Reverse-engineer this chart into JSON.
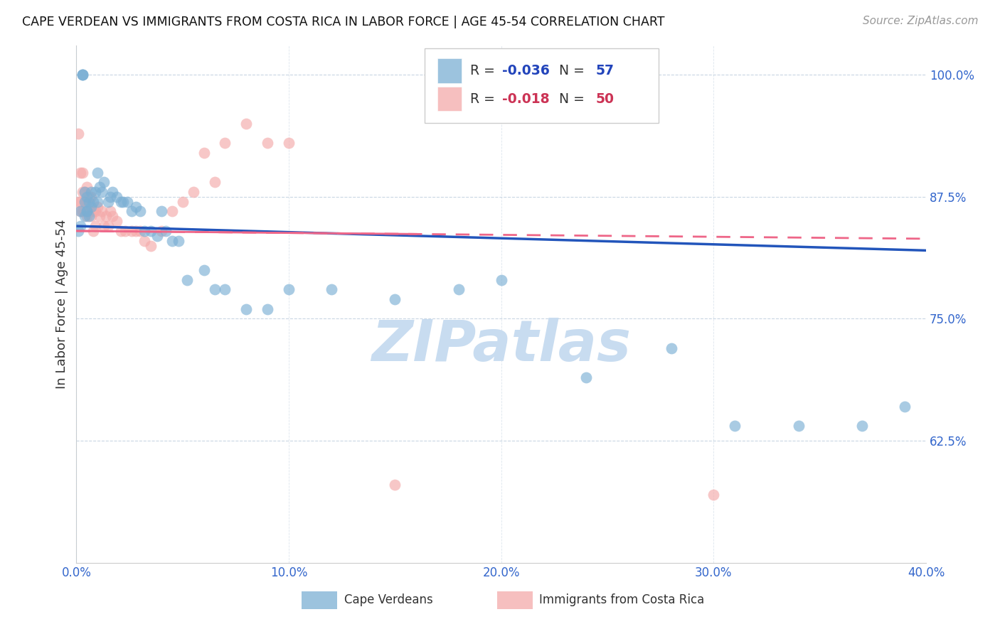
{
  "title": "CAPE VERDEAN VS IMMIGRANTS FROM COSTA RICA IN LABOR FORCE | AGE 45-54 CORRELATION CHART",
  "source": "Source: ZipAtlas.com",
  "ylabel": "In Labor Force | Age 45-54",
  "xlim": [
    0.0,
    0.4
  ],
  "ylim": [
    0.5,
    1.03
  ],
  "xtick_labels": [
    "0.0%",
    "10.0%",
    "20.0%",
    "30.0%",
    "40.0%"
  ],
  "xtick_vals": [
    0.0,
    0.1,
    0.2,
    0.3,
    0.4
  ],
  "ytick_labels": [
    "62.5%",
    "75.0%",
    "87.5%",
    "100.0%"
  ],
  "ytick_vals": [
    0.625,
    0.75,
    0.875,
    1.0
  ],
  "blue_color": "#7BAFD4",
  "pink_color": "#F4AAAA",
  "blue_line_color": "#2255BB",
  "pink_line_color": "#EE6688",
  "blue_R": -0.036,
  "blue_N": 57,
  "pink_R": -0.018,
  "pink_N": 50,
  "watermark": "ZIPatlas",
  "watermark_color": "#C8DCF0",
  "legend_label_blue": "Cape Verdeans",
  "legend_label_pink": "Immigrants from Costa Rica",
  "blue_x": [
    0.001,
    0.002,
    0.002,
    0.003,
    0.003,
    0.003,
    0.004,
    0.004,
    0.004,
    0.005,
    0.005,
    0.005,
    0.006,
    0.006,
    0.007,
    0.007,
    0.008,
    0.009,
    0.01,
    0.01,
    0.011,
    0.012,
    0.013,
    0.015,
    0.016,
    0.017,
    0.019,
    0.021,
    0.022,
    0.024,
    0.026,
    0.028,
    0.03,
    0.032,
    0.035,
    0.038,
    0.04,
    0.042,
    0.045,
    0.048,
    0.052,
    0.06,
    0.065,
    0.07,
    0.08,
    0.09,
    0.1,
    0.12,
    0.15,
    0.18,
    0.2,
    0.24,
    0.28,
    0.31,
    0.34,
    0.37,
    0.39
  ],
  "blue_y": [
    0.84,
    0.845,
    0.86,
    1.0,
    1.0,
    1.0,
    0.87,
    0.88,
    0.855,
    0.86,
    0.875,
    0.86,
    0.87,
    0.855,
    0.88,
    0.865,
    0.87,
    0.88,
    0.9,
    0.87,
    0.885,
    0.88,
    0.89,
    0.87,
    0.875,
    0.88,
    0.875,
    0.87,
    0.87,
    0.87,
    0.86,
    0.865,
    0.86,
    0.84,
    0.84,
    0.835,
    0.86,
    0.84,
    0.83,
    0.83,
    0.79,
    0.8,
    0.78,
    0.78,
    0.76,
    0.76,
    0.78,
    0.78,
    0.77,
    0.78,
    0.79,
    0.69,
    0.72,
    0.64,
    0.64,
    0.64,
    0.66
  ],
  "pink_x": [
    0.001,
    0.001,
    0.002,
    0.002,
    0.002,
    0.003,
    0.003,
    0.003,
    0.004,
    0.004,
    0.004,
    0.005,
    0.005,
    0.005,
    0.006,
    0.006,
    0.007,
    0.007,
    0.008,
    0.008,
    0.009,
    0.009,
    0.01,
    0.011,
    0.012,
    0.013,
    0.014,
    0.015,
    0.016,
    0.017,
    0.019,
    0.021,
    0.023,
    0.026,
    0.028,
    0.03,
    0.032,
    0.035,
    0.04,
    0.045,
    0.05,
    0.055,
    0.06,
    0.065,
    0.07,
    0.08,
    0.09,
    0.1,
    0.15,
    0.3
  ],
  "pink_y": [
    0.87,
    0.94,
    0.9,
    0.87,
    0.86,
    0.9,
    0.88,
    0.86,
    0.88,
    0.87,
    0.86,
    0.885,
    0.87,
    0.855,
    0.875,
    0.86,
    0.875,
    0.855,
    0.86,
    0.84,
    0.86,
    0.845,
    0.865,
    0.855,
    0.86,
    0.845,
    0.855,
    0.845,
    0.86,
    0.855,
    0.85,
    0.84,
    0.84,
    0.84,
    0.84,
    0.84,
    0.83,
    0.825,
    0.84,
    0.86,
    0.87,
    0.88,
    0.92,
    0.89,
    0.93,
    0.95,
    0.93,
    0.93,
    0.58,
    0.57
  ],
  "blue_trend_x0": 0.0,
  "blue_trend_y0": 0.845,
  "blue_trend_x1": 0.4,
  "blue_trend_y1": 0.82,
  "pink_trend_x0": 0.0,
  "pink_trend_y0": 0.84,
  "pink_trend_x1": 0.4,
  "pink_trend_y1": 0.832
}
